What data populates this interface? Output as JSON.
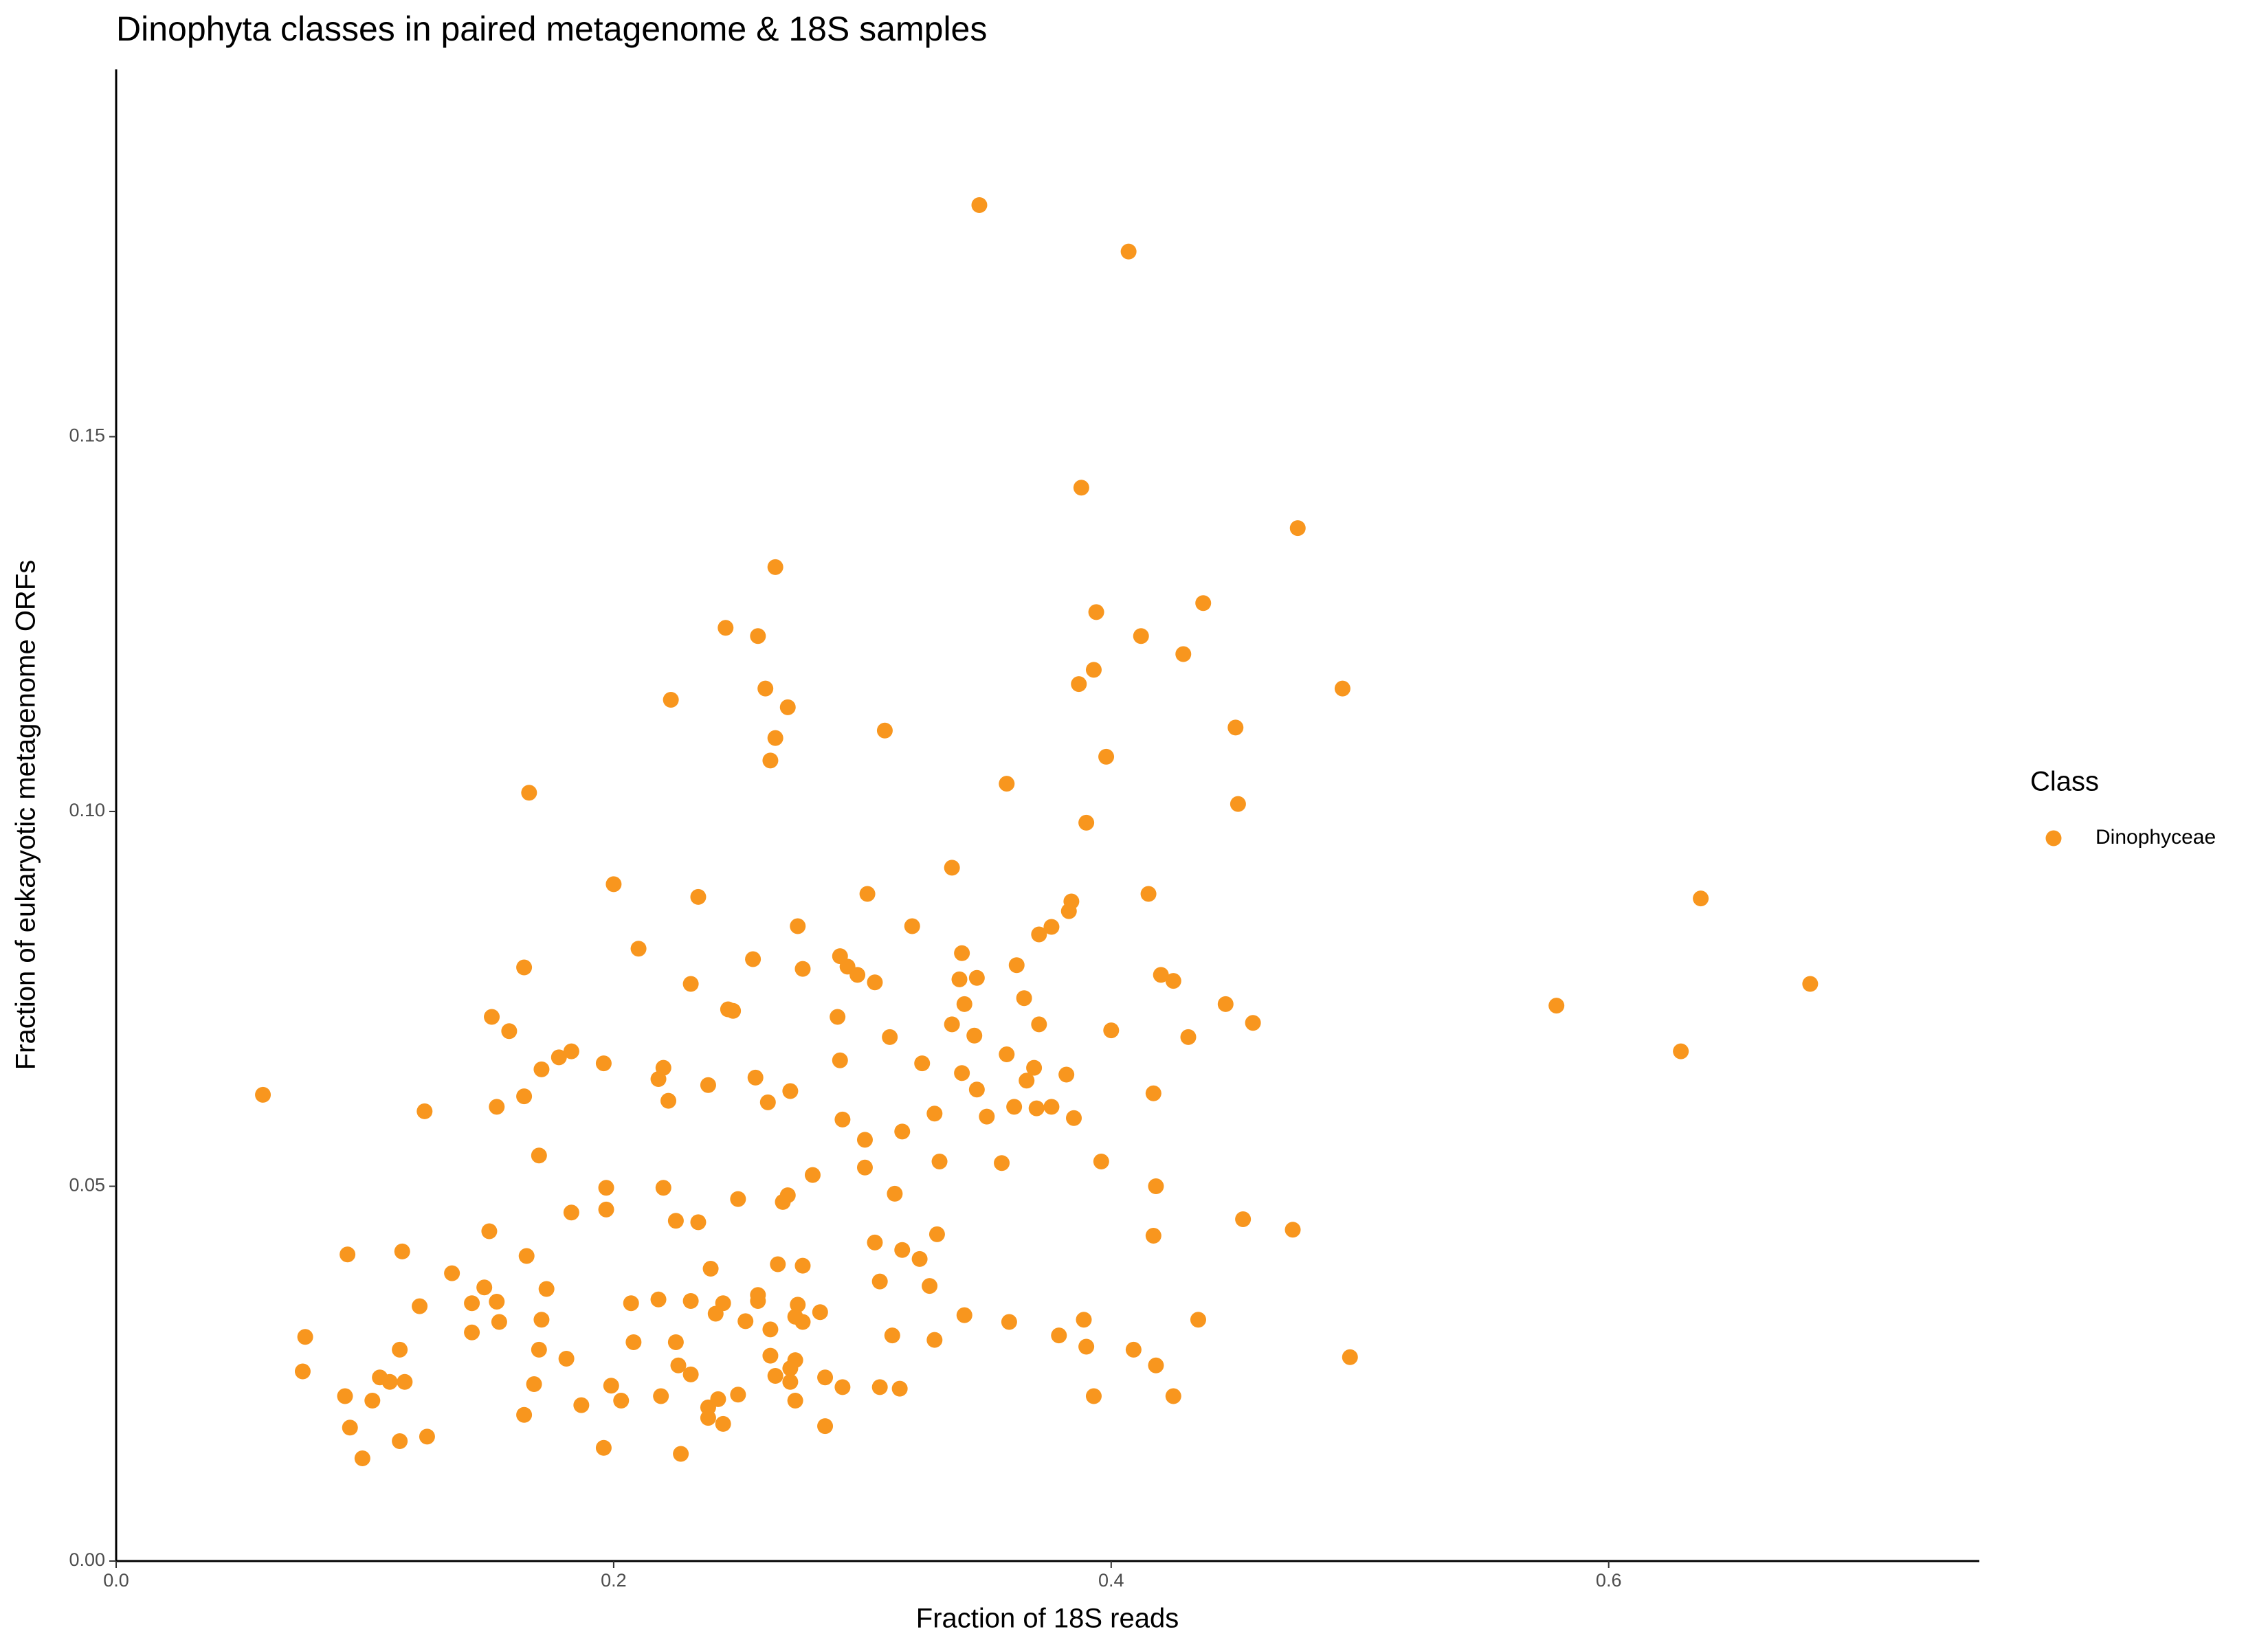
{
  "chart_data": {
    "type": "scatter",
    "title": "Dinophyta classes in paired metagenome & 18S samples",
    "x_label": "Fraction of 18S reads",
    "y_label": "Fraction of eukaryotic metagenome ORFs",
    "legend_title": "Class",
    "legend_position": "right",
    "xlim": [
      0,
      0.749
    ],
    "ylim": [
      0,
      0.199
    ],
    "xticks": [
      {
        "value": 0,
        "label": "0.0"
      },
      0.2,
      0.4,
      0.6
    ],
    "yticks": [
      {
        "value": 0,
        "label": "0.00"
      },
      0.05,
      {
        "value": 0.1,
        "label": "0.10"
      },
      0.15
    ],
    "series": [
      {
        "name": "Dinophyceae",
        "color": "#f8961e",
        "x": [
          0.347,
          0.407,
          0.388,
          0.475,
          0.265,
          0.437,
          0.394,
          0.245,
          0.412,
          0.258,
          0.429,
          0.393,
          0.387,
          0.261,
          0.493,
          0.223,
          0.27,
          0.45,
          0.309,
          0.265,
          0.398,
          0.263,
          0.358,
          0.166,
          0.451,
          0.39,
          0.336,
          0.2,
          0.415,
          0.302,
          0.234,
          0.637,
          0.384,
          0.383,
          0.32,
          0.274,
          0.376,
          0.371,
          0.21,
          0.34,
          0.291,
          0.256,
          0.362,
          0.164,
          0.294,
          0.276,
          0.298,
          0.42,
          0.425,
          0.339,
          0.346,
          0.305,
          0.231,
          0.681,
          0.365,
          0.341,
          0.446,
          0.579,
          0.246,
          0.248,
          0.151,
          0.29,
          0.457,
          0.336,
          0.371,
          0.158,
          0.4,
          0.345,
          0.311,
          0.431,
          0.629,
          0.183,
          0.178,
          0.358,
          0.324,
          0.291,
          0.22,
          0.196,
          0.171,
          0.369,
          0.34,
          0.382,
          0.218,
          0.257,
          0.366,
          0.238,
          0.346,
          0.271,
          0.417,
          0.164,
          0.059,
          0.222,
          0.262,
          0.361,
          0.37,
          0.376,
          0.153,
          0.124,
          0.329,
          0.35,
          0.385,
          0.292,
          0.301,
          0.316,
          0.17,
          0.331,
          0.356,
          0.396,
          0.301,
          0.28,
          0.22,
          0.197,
          0.418,
          0.313,
          0.27,
          0.25,
          0.268,
          0.197,
          0.183,
          0.453,
          0.225,
          0.234,
          0.15,
          0.473,
          0.33,
          0.417,
          0.305,
          0.115,
          0.316,
          0.093,
          0.165,
          0.323,
          0.266,
          0.276,
          0.239,
          0.135,
          0.307,
          0.148,
          0.327,
          0.173,
          0.258,
          0.218,
          0.231,
          0.258,
          0.143,
          0.153,
          0.207,
          0.244,
          0.274,
          0.122,
          0.283,
          0.241,
          0.273,
          0.341,
          0.435,
          0.171,
          0.389,
          0.154,
          0.253,
          0.359,
          0.276,
          0.263,
          0.143,
          0.312,
          0.379,
          0.076,
          0.329,
          0.208,
          0.225,
          0.39,
          0.114,
          0.17,
          0.409,
          0.263,
          0.496,
          0.181,
          0.273,
          0.418,
          0.226,
          0.075,
          0.271,
          0.231,
          0.265,
          0.106,
          0.285,
          0.11,
          0.116,
          0.271,
          0.168,
          0.199,
          0.292,
          0.307,
          0.315,
          0.25,
          0.092,
          0.219,
          0.425,
          0.393,
          0.242,
          0.103,
          0.203,
          0.273,
          0.238,
          0.187,
          0.164,
          0.238,
          0.244,
          0.285,
          0.094,
          0.125,
          0.114,
          0.196,
          0.227,
          0.099
        ],
        "values": [
          0.1809,
          0.1747,
          0.1432,
          0.1378,
          0.1326,
          0.1278,
          0.1266,
          0.1245,
          0.1234,
          0.1234,
          0.121,
          0.1189,
          0.117,
          0.1164,
          0.1164,
          0.1149,
          0.1139,
          0.1112,
          0.1108,
          0.1098,
          0.1073,
          0.1068,
          0.1037,
          0.1025,
          0.101,
          0.0985,
          0.0925,
          0.0903,
          0.089,
          0.089,
          0.0886,
          0.0884,
          0.088,
          0.0867,
          0.0847,
          0.0847,
          0.0846,
          0.0836,
          0.0817,
          0.0811,
          0.0807,
          0.0803,
          0.0795,
          0.0792,
          0.0793,
          0.079,
          0.0782,
          0.0782,
          0.0774,
          0.0776,
          0.0778,
          0.0772,
          0.077,
          0.077,
          0.0751,
          0.0743,
          0.0743,
          0.0741,
          0.0736,
          0.0734,
          0.0726,
          0.0726,
          0.0718,
          0.0716,
          0.0716,
          0.0707,
          0.0708,
          0.0701,
          0.0699,
          0.0699,
          0.068,
          0.068,
          0.0672,
          0.0676,
          0.0664,
          0.0668,
          0.0658,
          0.0664,
          0.0656,
          0.0658,
          0.0651,
          0.0649,
          0.0643,
          0.0645,
          0.0641,
          0.0635,
          0.0629,
          0.0627,
          0.0624,
          0.062,
          0.0622,
          0.0614,
          0.0612,
          0.0606,
          0.0604,
          0.0606,
          0.0606,
          0.06,
          0.0597,
          0.0593,
          0.0591,
          0.0589,
          0.0562,
          0.0573,
          0.0541,
          0.0533,
          0.0531,
          0.0533,
          0.0525,
          0.0515,
          0.0498,
          0.0498,
          0.05,
          0.049,
          0.0488,
          0.0483,
          0.0479,
          0.0469,
          0.0465,
          0.0456,
          0.0454,
          0.0452,
          0.044,
          0.0442,
          0.0436,
          0.0434,
          0.0425,
          0.0413,
          0.0415,
          0.0409,
          0.0407,
          0.0403,
          0.0396,
          0.0394,
          0.039,
          0.0384,
          0.0373,
          0.0365,
          0.0367,
          0.0363,
          0.0355,
          0.0349,
          0.0347,
          0.0347,
          0.0344,
          0.0346,
          0.0344,
          0.0344,
          0.0342,
          0.034,
          0.0332,
          0.033,
          0.0326,
          0.0328,
          0.0322,
          0.0322,
          0.0322,
          0.0319,
          0.032,
          0.0319,
          0.0319,
          0.0309,
          0.0305,
          0.0301,
          0.0301,
          0.0299,
          0.0295,
          0.0292,
          0.0292,
          0.0286,
          0.0282,
          0.0282,
          0.0282,
          0.0274,
          0.0272,
          0.027,
          0.0268,
          0.0261,
          0.0261,
          0.0253,
          0.0257,
          0.0249,
          0.0247,
          0.0245,
          0.0245,
          0.0239,
          0.0239,
          0.0239,
          0.0236,
          0.0234,
          0.0232,
          0.0232,
          0.023,
          0.0222,
          0.022,
          0.022,
          0.022,
          0.022,
          0.0216,
          0.0214,
          0.0214,
          0.0214,
          0.0205,
          0.0208,
          0.0195,
          0.0191,
          0.0183,
          0.018,
          0.0178,
          0.0166,
          0.016,
          0.0151,
          0.0143,
          0.0137
        ]
      }
    ]
  }
}
